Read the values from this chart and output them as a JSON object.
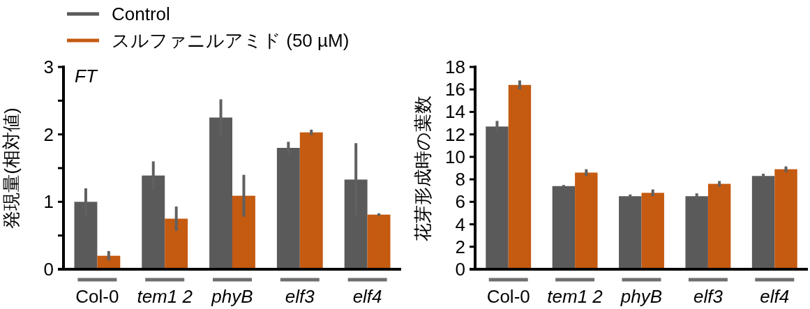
{
  "chart_data": [
    {
      "type": "bar",
      "title": "FT",
      "ylabel": "発現量(相対値)",
      "categories": [
        "Col-0",
        "tem1 2",
        "phyB",
        "elf3",
        "elf4"
      ],
      "ylim": [
        0,
        3
      ],
      "yticks": [
        0,
        {
          "value": 0.5,
          "label": null
        },
        1,
        {
          "value": 1.5,
          "label": null
        },
        2,
        {
          "value": 2.5,
          "label": null
        },
        3
      ],
      "grid": false,
      "legend": "top left",
      "series": [
        {
          "name": "Control",
          "color": "#5a5a5a",
          "values": [
            1.0,
            1.39,
            2.25,
            1.8,
            1.33
          ],
          "errors": [
            0.2,
            0.21,
            0.27,
            0.09,
            0.54
          ]
        },
        {
          "name": "スルファニルアミド (50 µM)",
          "color": "#c55a11",
          "values": [
            0.2,
            0.75,
            1.09,
            2.03,
            0.81
          ],
          "errors": [
            0.07,
            0.18,
            0.31,
            0.04,
            0.02
          ]
        }
      ]
    },
    {
      "type": "bar",
      "ylabel": "花芽形成時の葉数",
      "categories": [
        "Col-0",
        "tem1 2",
        "phyB",
        "elf3",
        "elf4"
      ],
      "ylim": [
        0,
        18
      ],
      "yticks": [
        0,
        2,
        4,
        6,
        8,
        10,
        12,
        14,
        16,
        18
      ],
      "grid": false,
      "series": [
        {
          "color": "#5a5a5a",
          "values": [
            12.7,
            7.4,
            6.5,
            6.5,
            8.3
          ],
          "errors": [
            0.5,
            0.1,
            0.15,
            0.25,
            0.2
          ]
        },
        {
          "color": "#c55a11",
          "values": [
            16.4,
            8.6,
            6.8,
            7.6,
            8.9
          ],
          "errors": [
            0.4,
            0.3,
            0.3,
            0.25,
            0.25
          ]
        }
      ]
    }
  ]
}
